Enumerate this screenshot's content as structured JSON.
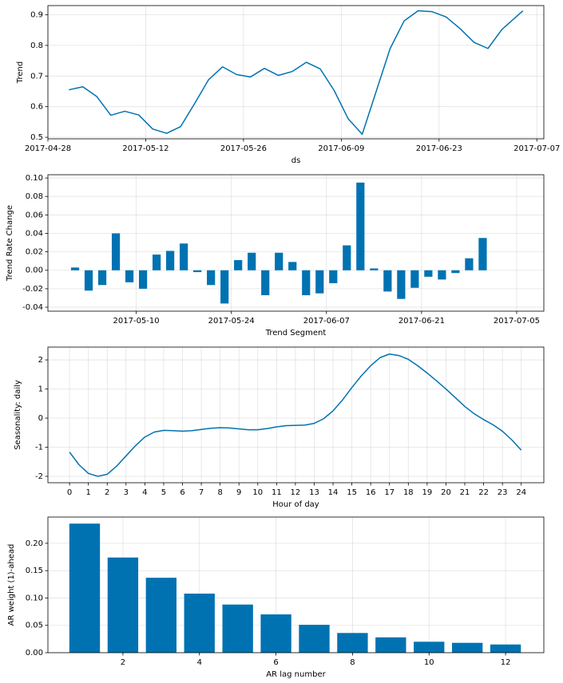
{
  "chart_data": [
    {
      "type": "line",
      "xlabel": "ds",
      "ylabel": "Trend",
      "color": "#0072b2",
      "grid": true,
      "x": [
        "2017-05-01",
        "2017-05-03",
        "2017-05-05",
        "2017-05-07",
        "2017-05-09",
        "2017-05-11",
        "2017-05-13",
        "2017-05-15",
        "2017-05-17",
        "2017-05-19",
        "2017-05-21",
        "2017-05-23",
        "2017-05-25",
        "2017-05-27",
        "2017-05-29",
        "2017-05-31",
        "2017-06-02",
        "2017-06-04",
        "2017-06-06",
        "2017-06-08",
        "2017-06-10",
        "2017-06-12",
        "2017-06-14",
        "2017-06-16",
        "2017-06-18",
        "2017-06-20",
        "2017-06-22",
        "2017-06-24",
        "2017-06-26",
        "2017-06-28",
        "2017-06-30",
        "2017-07-02",
        "2017-07-05"
      ],
      "values": [
        0.655,
        0.665,
        0.633,
        0.572,
        0.585,
        0.573,
        0.527,
        0.513,
        0.535,
        0.61,
        0.688,
        0.73,
        0.705,
        0.697,
        0.725,
        0.702,
        0.715,
        0.745,
        0.723,
        0.652,
        0.56,
        0.51,
        0.65,
        0.79,
        0.88,
        0.913,
        0.91,
        0.893,
        0.855,
        0.81,
        0.79,
        0.852,
        0.913
      ],
      "xlim": [
        "2017-04-28",
        "2017-07-08"
      ],
      "xticks": [
        "2017-04-28",
        "2017-05-12",
        "2017-05-26",
        "2017-06-09",
        "2017-06-23",
        "2017-07-07"
      ],
      "ylim": [
        0.495,
        0.93
      ],
      "yticks": [
        0.5,
        0.6,
        0.7,
        0.8,
        0.9
      ]
    },
    {
      "type": "bar",
      "xlabel": "Trend Segment",
      "ylabel": "Trend Rate Change",
      "color": "#0072b2",
      "grid": true,
      "x": [
        "2017-05-01",
        "2017-05-03",
        "2017-05-05",
        "2017-05-07",
        "2017-05-09",
        "2017-05-11",
        "2017-05-13",
        "2017-05-15",
        "2017-05-17",
        "2017-05-19",
        "2017-05-21",
        "2017-05-23",
        "2017-05-25",
        "2017-05-27",
        "2017-05-29",
        "2017-05-31",
        "2017-06-02",
        "2017-06-04",
        "2017-06-06",
        "2017-06-08",
        "2017-06-10",
        "2017-06-12",
        "2017-06-14",
        "2017-06-16",
        "2017-06-18",
        "2017-06-20",
        "2017-06-22",
        "2017-06-24",
        "2017-06-26",
        "2017-06-28",
        "2017-06-30"
      ],
      "values": [
        0.003,
        -0.022,
        -0.016,
        0.04,
        -0.013,
        -0.02,
        0.017,
        0.021,
        0.029,
        -0.002,
        -0.016,
        -0.036,
        0.011,
        0.019,
        -0.027,
        0.019,
        0.009,
        -0.027,
        -0.025,
        -0.014,
        0.027,
        0.095,
        0.002,
        -0.023,
        -0.031,
        -0.019,
        -0.007,
        -0.01,
        -0.003,
        0.013,
        0.035
      ],
      "xlim": [
        "2017-04-27",
        "2017-07-09"
      ],
      "xticks": [
        "2017-05-10",
        "2017-05-24",
        "2017-06-07",
        "2017-06-21",
        "2017-07-05"
      ],
      "ylim": [
        -0.0443,
        0.1035
      ],
      "yticks": [
        {
          "value": -0.04,
          "label": "-0.04"
        },
        {
          "value": -0.02,
          "label": "-0.02"
        },
        {
          "value": 0,
          "label": "0.00"
        },
        {
          "value": 0.02,
          "label": "0.02"
        },
        {
          "value": 0.04,
          "label": "0.04"
        },
        {
          "value": 0.06,
          "label": "0.06"
        },
        {
          "value": 0.08,
          "label": "0.08"
        },
        {
          "value": 0.1,
          "label": "0.10"
        }
      ]
    },
    {
      "type": "line",
      "xlabel": "Hour of day",
      "ylabel": "Seasonality: daily",
      "color": "#0072b2",
      "grid": true,
      "x": [
        0,
        0.5,
        1,
        1.5,
        2,
        2.5,
        3,
        3.5,
        4,
        4.5,
        5,
        5.5,
        6,
        6.5,
        7,
        7.5,
        8,
        8.5,
        9,
        9.5,
        10,
        10.5,
        11,
        11.5,
        12,
        12.5,
        13,
        13.5,
        14,
        14.5,
        15,
        15.5,
        16,
        16.5,
        17,
        17.5,
        18,
        18.5,
        19,
        19.5,
        20,
        20.5,
        21,
        21.5,
        22,
        22.5,
        23,
        23.5,
        24
      ],
      "values": [
        -1.17,
        -1.6,
        -1.9,
        -2.0,
        -1.93,
        -1.65,
        -1.3,
        -0.95,
        -0.65,
        -0.48,
        -0.42,
        -0.43,
        -0.45,
        -0.43,
        -0.39,
        -0.35,
        -0.33,
        -0.34,
        -0.37,
        -0.4,
        -0.4,
        -0.36,
        -0.3,
        -0.26,
        -0.25,
        -0.24,
        -0.18,
        -0.02,
        0.25,
        0.62,
        1.05,
        1.45,
        1.8,
        2.08,
        2.2,
        2.15,
        2.02,
        1.8,
        1.55,
        1.28,
        1.0,
        0.7,
        0.4,
        0.15,
        -0.05,
        -0.23,
        -0.45,
        -0.75,
        -1.1
      ],
      "xlim": [
        -1.15,
        25.2
      ],
      "xticks": [
        0,
        1,
        2,
        3,
        4,
        5,
        6,
        7,
        8,
        9,
        10,
        11,
        12,
        13,
        14,
        15,
        16,
        17,
        18,
        19,
        20,
        21,
        22,
        23,
        24
      ],
      "ylim": [
        -2.22,
        2.44
      ],
      "yticks": [
        -2,
        -1,
        0,
        1,
        2
      ]
    },
    {
      "type": "bar",
      "xlabel": "AR lag number",
      "ylabel": "AR weight (1)-ahead",
      "color": "#0072b2",
      "grid": true,
      "x": [
        1,
        2,
        3,
        4,
        5,
        6,
        7,
        8,
        9,
        10,
        11,
        12
      ],
      "values": [
        0.236,
        0.174,
        0.137,
        0.108,
        0.088,
        0.07,
        0.051,
        0.036,
        0.028,
        0.02,
        0.018,
        0.015
      ],
      "xlim": [
        0.04,
        13.0
      ],
      "xticks": [
        2,
        4,
        6,
        8,
        10,
        12
      ],
      "ylim": [
        0,
        0.248
      ],
      "yticks": [
        {
          "value": 0,
          "label": "0.00"
        },
        {
          "value": 0.05,
          "label": "0.05"
        },
        {
          "value": 0.1,
          "label": "0.10"
        },
        {
          "value": 0.15,
          "label": "0.15"
        },
        {
          "value": 0.2,
          "label": "0.20"
        }
      ]
    }
  ]
}
